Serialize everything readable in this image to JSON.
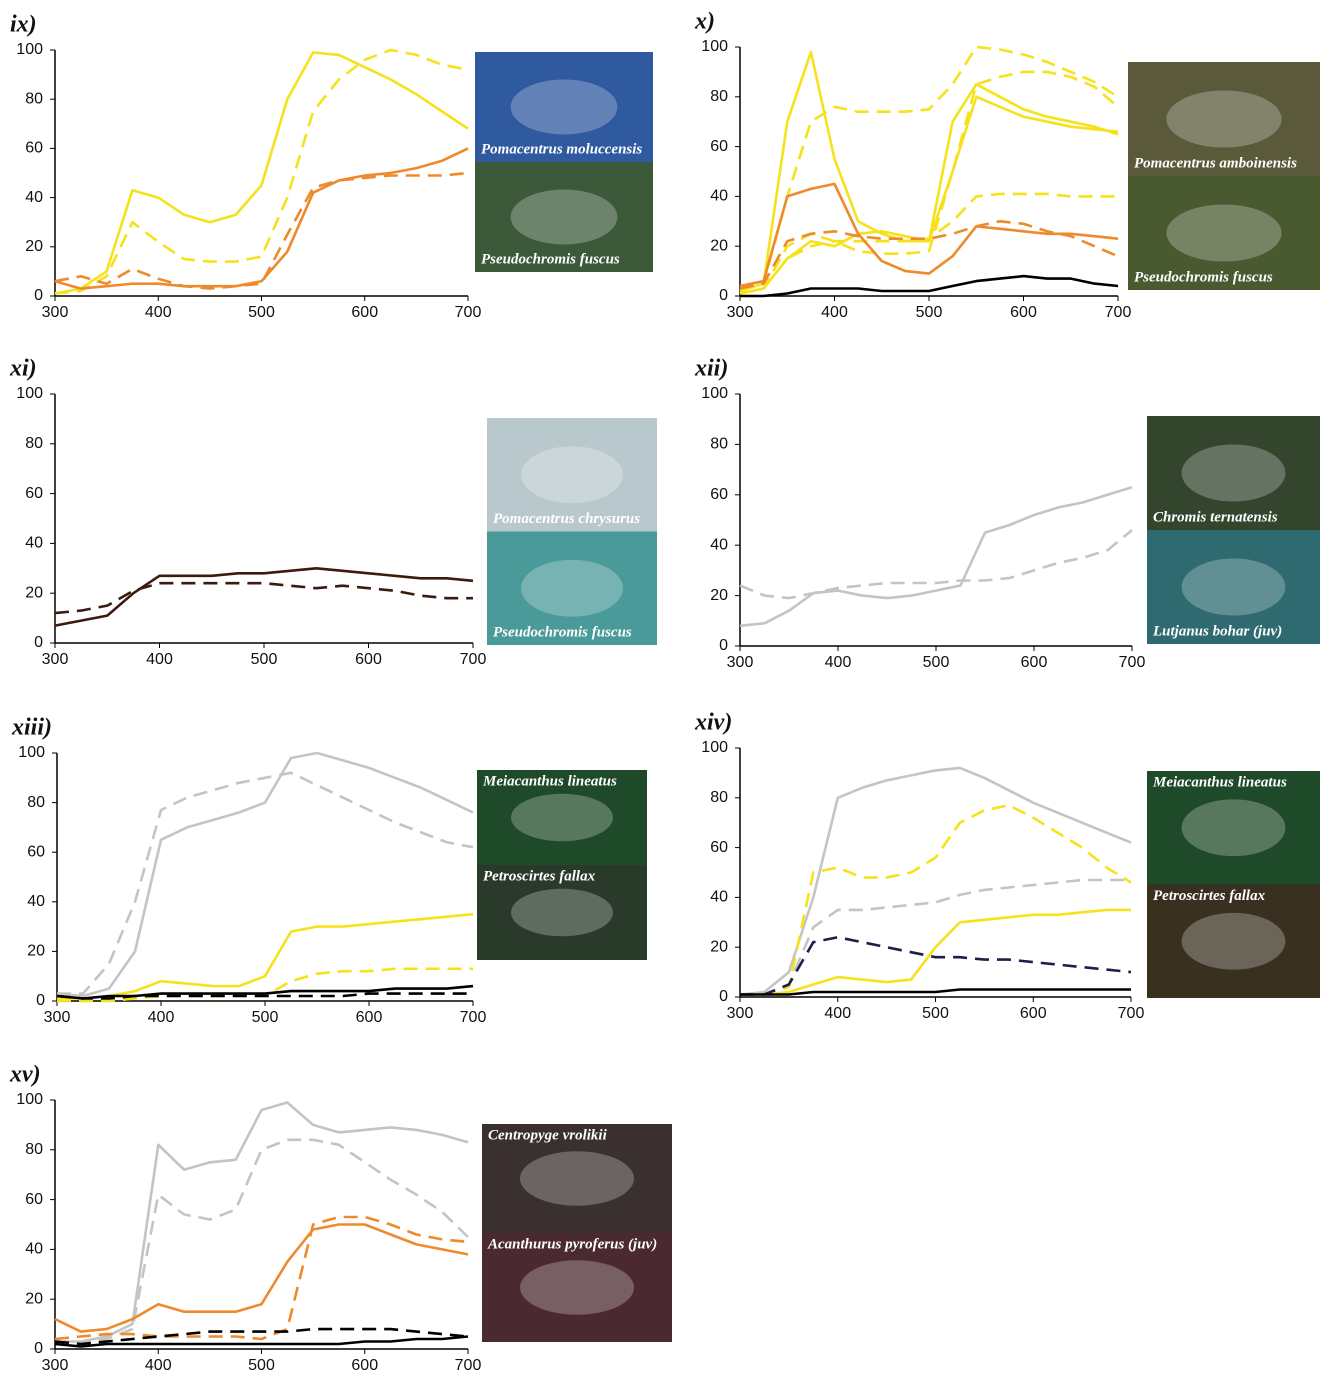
{
  "chart_data": [
    {
      "type": "line",
      "title": "ix)",
      "xlim": [
        300,
        700
      ],
      "ylim": [
        0,
        100
      ],
      "xticks": [
        300,
        400,
        500,
        600,
        700
      ],
      "yticks": [
        0,
        20,
        40,
        60,
        80,
        100
      ],
      "x": [
        300,
        325,
        350,
        375,
        400,
        425,
        450,
        475,
        500,
        525,
        550,
        575,
        600,
        625,
        650,
        675,
        700
      ],
      "series": [
        {
          "color": "#f5e21a",
          "dashed": false,
          "values": [
            1,
            3,
            10,
            43,
            40,
            33,
            30,
            33,
            45,
            80,
            99,
            98,
            93,
            88,
            82,
            75,
            68
          ]
        },
        {
          "color": "#f5e21a",
          "dashed": true,
          "values": [
            1,
            2,
            8,
            30,
            22,
            15,
            14,
            14,
            16,
            40,
            75,
            88,
            96,
            100,
            98,
            94,
            92
          ]
        },
        {
          "color": "#ef8a2c",
          "dashed": false,
          "values": [
            6,
            3,
            4,
            5,
            5,
            4,
            4,
            4,
            6,
            18,
            42,
            47,
            49,
            50,
            52,
            55,
            60
          ]
        },
        {
          "color": "#ef8a2c",
          "dashed": true,
          "values": [
            6,
            8,
            5,
            11,
            7,
            4,
            3,
            4,
            5,
            25,
            44,
            47,
            48,
            49,
            49,
            49,
            50
          ]
        }
      ],
      "photos": [
        {
          "caption": "Pomacentrus moluccensis",
          "color": "#2f5aa0"
        },
        {
          "caption": "Pseudochromis fuscus",
          "color": "#3c5a3a"
        }
      ]
    },
    {
      "type": "line",
      "title": "x)",
      "xlim": [
        300,
        700
      ],
      "ylim": [
        0,
        100
      ],
      "xticks": [
        300,
        400,
        500,
        600,
        700
      ],
      "yticks": [
        0,
        20,
        40,
        60,
        80,
        100
      ],
      "x": [
        300,
        325,
        350,
        375,
        400,
        425,
        450,
        475,
        500,
        525,
        550,
        575,
        600,
        625,
        650,
        675,
        700
      ],
      "series": [
        {
          "color": "#f5e21a",
          "dashed": false,
          "values": [
            2,
            5,
            70,
            98,
            55,
            30,
            25,
            22,
            22,
            70,
            85,
            80,
            75,
            72,
            70,
            68,
            65
          ]
        },
        {
          "color": "#f5e21a",
          "dashed": false,
          "values": [
            1,
            3,
            15,
            22,
            20,
            25,
            26,
            24,
            22,
            50,
            80,
            76,
            72,
            70,
            68,
            67,
            66
          ]
        },
        {
          "color": "#f5e21a",
          "dashed": true,
          "values": [
            2,
            5,
            40,
            70,
            76,
            74,
            74,
            74,
            75,
            85,
            100,
            99,
            97,
            94,
            90,
            86,
            80
          ]
        },
        {
          "color": "#f5e21a",
          "dashed": true,
          "values": [
            1,
            3,
            20,
            25,
            22,
            18,
            17,
            17,
            18,
            50,
            85,
            88,
            90,
            90,
            88,
            84,
            76
          ]
        },
        {
          "color": "#f5e21a",
          "dashed": true,
          "values": [
            1,
            3,
            15,
            20,
            22,
            22,
            22,
            22,
            23,
            30,
            40,
            41,
            41,
            41,
            40,
            40,
            40
          ]
        },
        {
          "color": "#ef8a2c",
          "dashed": false,
          "values": [
            4,
            6,
            40,
            43,
            45,
            25,
            14,
            10,
            9,
            16,
            28,
            27,
            26,
            25,
            25,
            24,
            23
          ]
        },
        {
          "color": "#ef8a2c",
          "dashed": true,
          "values": [
            3,
            5,
            22,
            25,
            26,
            24,
            23,
            23,
            23,
            25,
            28,
            30,
            29,
            26,
            24,
            20,
            16
          ]
        },
        {
          "color": "#000000",
          "dashed": false,
          "values": [
            0,
            0,
            1,
            3,
            3,
            3,
            2,
            2,
            2,
            4,
            6,
            7,
            8,
            7,
            7,
            5,
            4
          ]
        }
      ],
      "photos": [
        {
          "caption": "Pomacentrus amboinensis",
          "color": "#5a5a3a"
        },
        {
          "caption": "Pseudochromis fuscus",
          "color": "#4a5a30"
        }
      ]
    },
    {
      "type": "line",
      "title": "xi)",
      "xlim": [
        300,
        700
      ],
      "ylim": [
        0,
        100
      ],
      "xticks": [
        300,
        400,
        500,
        600,
        700
      ],
      "yticks": [
        0,
        20,
        40,
        60,
        80,
        100
      ],
      "x": [
        300,
        325,
        350,
        375,
        400,
        425,
        450,
        475,
        500,
        525,
        550,
        575,
        600,
        625,
        650,
        675,
        700
      ],
      "series": [
        {
          "color": "#3d1a10",
          "dashed": false,
          "values": [
            7,
            9,
            11,
            20,
            27,
            27,
            27,
            28,
            28,
            29,
            30,
            29,
            28,
            27,
            26,
            26,
            25
          ]
        },
        {
          "color": "#3d1a10",
          "dashed": true,
          "values": [
            12,
            13,
            15,
            21,
            24,
            24,
            24,
            24,
            24,
            23,
            22,
            23,
            22,
            21,
            19,
            18,
            18
          ]
        }
      ],
      "photos": [
        {
          "caption": "Pomacentrus chrysurus",
          "color": "#b8c8cc"
        },
        {
          "caption": "Pseudochromis fuscus",
          "color": "#4a9a9a"
        }
      ]
    },
    {
      "type": "line",
      "title": "xii)",
      "xlim": [
        300,
        700
      ],
      "ylim": [
        0,
        100
      ],
      "xticks": [
        300,
        400,
        500,
        600,
        700
      ],
      "yticks": [
        0,
        20,
        40,
        60,
        80,
        100
      ],
      "x": [
        300,
        325,
        350,
        375,
        400,
        425,
        450,
        475,
        500,
        525,
        550,
        575,
        600,
        625,
        650,
        675,
        700
      ],
      "series": [
        {
          "color": "#c4c4c4",
          "dashed": false,
          "values": [
            8,
            9,
            14,
            21,
            22,
            20,
            19,
            20,
            22,
            24,
            45,
            48,
            52,
            55,
            57,
            60,
            63
          ]
        },
        {
          "color": "#c4c4c4",
          "dashed": true,
          "values": [
            24,
            20,
            19,
            21,
            23,
            24,
            25,
            25,
            25,
            26,
            26,
            27,
            30,
            33,
            35,
            38,
            46
          ]
        }
      ],
      "photos": [
        {
          "caption": "Chromis ternatensis",
          "color": "#34452e"
        },
        {
          "caption": "Lutjanus bohar (juv)",
          "color": "#2e6a70"
        }
      ]
    },
    {
      "type": "line",
      "title": "xiii)",
      "xlim": [
        300,
        700
      ],
      "ylim": [
        0,
        100
      ],
      "xticks": [
        300,
        400,
        500,
        600,
        700
      ],
      "yticks": [
        0,
        20,
        40,
        60,
        80,
        100
      ],
      "x": [
        300,
        325,
        350,
        375,
        400,
        425,
        450,
        475,
        500,
        525,
        550,
        575,
        600,
        625,
        650,
        675,
        700
      ],
      "series": [
        {
          "color": "#c4c4c4",
          "dashed": false,
          "values": [
            3,
            2,
            5,
            20,
            65,
            70,
            73,
            76,
            80,
            98,
            100,
            97,
            94,
            90,
            86,
            81,
            76
          ]
        },
        {
          "color": "#c4c4c4",
          "dashed": true,
          "values": [
            3,
            3,
            15,
            40,
            77,
            82,
            85,
            88,
            90,
            92,
            87,
            82,
            77,
            72,
            68,
            64,
            62
          ]
        },
        {
          "color": "#f5e21a",
          "dashed": false,
          "values": [
            1,
            1,
            2,
            4,
            8,
            7,
            6,
            6,
            10,
            28,
            30,
            30,
            31,
            32,
            33,
            34,
            35
          ]
        },
        {
          "color": "#f5e21a",
          "dashed": true,
          "values": [
            0,
            0,
            0,
            1,
            2,
            2,
            2,
            2,
            2,
            8,
            11,
            12,
            12,
            13,
            13,
            13,
            13
          ]
        },
        {
          "color": "#000000",
          "dashed": false,
          "values": [
            2,
            1,
            2,
            2,
            3,
            3,
            3,
            3,
            3,
            4,
            4,
            4,
            4,
            5,
            5,
            5,
            6
          ]
        },
        {
          "color": "#000000",
          "dashed": true,
          "values": [
            2,
            1,
            1,
            2,
            2,
            2,
            2,
            2,
            2,
            2,
            2,
            2,
            3,
            3,
            3,
            3,
            3
          ]
        }
      ],
      "photos": [
        {
          "caption": "Meiacanthus lineatus",
          "color": "#1f4a2a"
        },
        {
          "caption": "Petroscirtes fallax",
          "color": "#2a3a2a"
        }
      ]
    },
    {
      "type": "line",
      "title": "xiv)",
      "xlim": [
        300,
        700
      ],
      "ylim": [
        0,
        100
      ],
      "xticks": [
        300,
        400,
        500,
        600,
        700
      ],
      "yticks": [
        0,
        20,
        40,
        60,
        80,
        100
      ],
      "x": [
        300,
        325,
        350,
        375,
        400,
        425,
        450,
        475,
        500,
        525,
        550,
        575,
        600,
        625,
        650,
        675,
        700
      ],
      "series": [
        {
          "color": "#c4c4c4",
          "dashed": false,
          "values": [
            1,
            2,
            10,
            40,
            80,
            84,
            87,
            89,
            91,
            92,
            88,
            83,
            78,
            74,
            70,
            66,
            62
          ]
        },
        {
          "color": "#c4c4c4",
          "dashed": true,
          "values": [
            1,
            1,
            5,
            28,
            35,
            35,
            36,
            37,
            38,
            41,
            43,
            44,
            45,
            46,
            47,
            47,
            47
          ]
        },
        {
          "color": "#f5e21a",
          "dashed": true,
          "values": [
            1,
            1,
            4,
            50,
            52,
            48,
            48,
            50,
            56,
            70,
            75,
            77,
            72,
            66,
            60,
            52,
            46
          ]
        },
        {
          "color": "#f5e21a",
          "dashed": false,
          "values": [
            1,
            1,
            2,
            5,
            8,
            7,
            6,
            7,
            20,
            30,
            31,
            32,
            33,
            33,
            34,
            35,
            35
          ]
        },
        {
          "color": "#1e1e4a",
          "dashed": true,
          "values": [
            1,
            1,
            5,
            22,
            24,
            22,
            20,
            18,
            16,
            16,
            15,
            15,
            14,
            13,
            12,
            11,
            10
          ]
        },
        {
          "color": "#000000",
          "dashed": false,
          "values": [
            1,
            1,
            1,
            2,
            2,
            2,
            2,
            2,
            2,
            3,
            3,
            3,
            3,
            3,
            3,
            3,
            3
          ]
        }
      ],
      "photos": [
        {
          "caption": "Meiacanthus lineatus",
          "color": "#1f4a2a"
        },
        {
          "caption": "Petroscirtes fallax",
          "color": "#3a3020"
        }
      ]
    },
    {
      "type": "line",
      "title": "xv)",
      "xlim": [
        300,
        700
      ],
      "ylim": [
        0,
        100
      ],
      "xticks": [
        300,
        400,
        500,
        600,
        700
      ],
      "yticks": [
        0,
        20,
        40,
        60,
        80,
        100
      ],
      "x": [
        300,
        325,
        350,
        375,
        400,
        425,
        450,
        475,
        500,
        525,
        550,
        575,
        600,
        625,
        650,
        675,
        700
      ],
      "series": [
        {
          "color": "#c4c4c4",
          "dashed": false,
          "values": [
            3,
            3,
            5,
            10,
            82,
            72,
            75,
            76,
            96,
            99,
            90,
            87,
            88,
            89,
            88,
            86,
            83
          ]
        },
        {
          "color": "#c4c4c4",
          "dashed": true,
          "values": [
            3,
            2,
            4,
            8,
            62,
            54,
            52,
            56,
            80,
            84,
            84,
            82,
            75,
            68,
            62,
            55,
            45
          ]
        },
        {
          "color": "#ef8a2c",
          "dashed": false,
          "values": [
            12,
            7,
            8,
            12,
            18,
            15,
            15,
            15,
            18,
            35,
            48,
            50,
            50,
            46,
            42,
            40,
            38
          ]
        },
        {
          "color": "#ef8a2c",
          "dashed": true,
          "values": [
            4,
            5,
            6,
            6,
            5,
            5,
            5,
            5,
            4,
            8,
            50,
            53,
            53,
            50,
            46,
            44,
            43
          ]
        },
        {
          "color": "#000000",
          "dashed": true,
          "values": [
            3,
            2,
            3,
            4,
            5,
            6,
            7,
            7,
            7,
            7,
            8,
            8,
            8,
            8,
            7,
            6,
            5
          ]
        },
        {
          "color": "#000000",
          "dashed": false,
          "values": [
            2,
            1,
            2,
            2,
            2,
            2,
            2,
            2,
            2,
            2,
            2,
            2,
            3,
            3,
            4,
            4,
            5
          ]
        }
      ],
      "photos": [
        {
          "caption": "Centropyge vrolikii",
          "color": "#3a3030"
        },
        {
          "caption": "Acanthurus pyroferus (juv)",
          "color": "#4a2a30"
        }
      ]
    }
  ]
}
